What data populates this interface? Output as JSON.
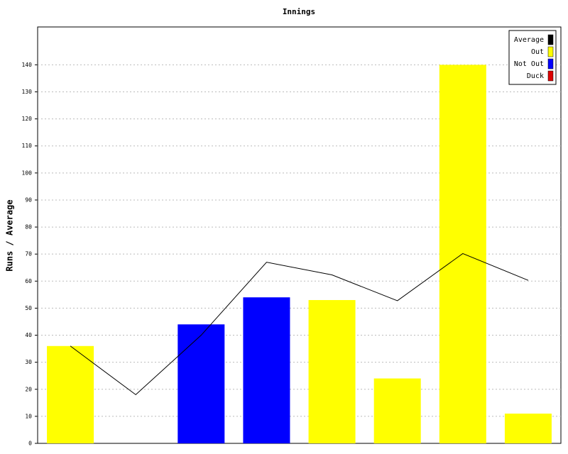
{
  "chart_data": {
    "type": "bar",
    "title": "Innings",
    "y_label": "Runs / Average",
    "categories": [
      null,
      null,
      null,
      null,
      null,
      null,
      null,
      null
    ],
    "series": [
      {
        "name": "Average",
        "color": "#000000",
        "type": "line",
        "values": [
          36,
          18,
          40,
          67,
          62.3,
          52.75,
          70.2,
          60.3
        ]
      },
      {
        "name": "Out",
        "color": "#ffff00",
        "values": [
          36,
          null,
          null,
          null,
          53,
          24,
          140,
          11
        ]
      },
      {
        "name": "Not Out",
        "color": "#0000ff",
        "values": [
          null,
          null,
          44,
          54,
          null,
          null,
          null,
          null
        ]
      },
      {
        "name": "Duck",
        "color": "#dd0000",
        "values": [
          null,
          0,
          null,
          null,
          null,
          null,
          null,
          null
        ]
      }
    ],
    "ylim": [
      0,
      154
    ],
    "yticks": [
      0,
      10,
      20,
      30,
      40,
      50,
      60,
      70,
      80,
      90,
      100,
      110,
      120,
      130,
      140
    ],
    "grid": true,
    "legend": "top-right"
  }
}
